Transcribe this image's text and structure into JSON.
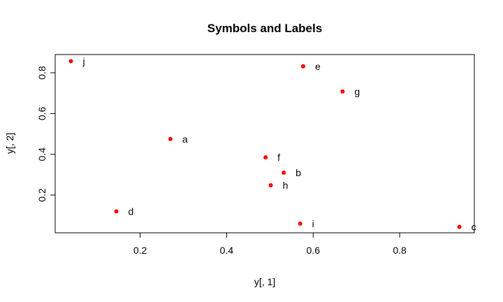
{
  "chart_data": {
    "type": "scatter",
    "title": "Symbols and Labels",
    "xlabel": "y[, 1]",
    "ylabel": "y[, 2]",
    "xlim": [
      0.0037,
      0.9726
    ],
    "ylim": [
      0.0149,
      0.8895
    ],
    "x_ticks": [
      0.2,
      0.4,
      0.6,
      0.8
    ],
    "x_tick_labels": [
      "0.2",
      "0.4",
      "0.6",
      "0.8"
    ],
    "y_ticks": [
      0.2,
      0.4,
      0.6,
      0.8
    ],
    "y_tick_labels": [
      "0.2",
      "0.4",
      "0.6",
      "0.8"
    ],
    "grid": false,
    "marker_color": "#ff0000",
    "points": [
      {
        "label": "a",
        "x": 0.27,
        "y": 0.475
      },
      {
        "label": "b",
        "x": 0.532,
        "y": 0.31
      },
      {
        "label": "c",
        "x": 0.938,
        "y": 0.044
      },
      {
        "label": "d",
        "x": 0.145,
        "y": 0.12
      },
      {
        "label": "e",
        "x": 0.577,
        "y": 0.832
      },
      {
        "label": "f",
        "x": 0.49,
        "y": 0.385
      },
      {
        "label": "g",
        "x": 0.668,
        "y": 0.708
      },
      {
        "label": "h",
        "x": 0.502,
        "y": 0.248
      },
      {
        "label": "i",
        "x": 0.57,
        "y": 0.06
      },
      {
        "label": "j",
        "x": 0.04,
        "y": 0.857
      }
    ]
  }
}
